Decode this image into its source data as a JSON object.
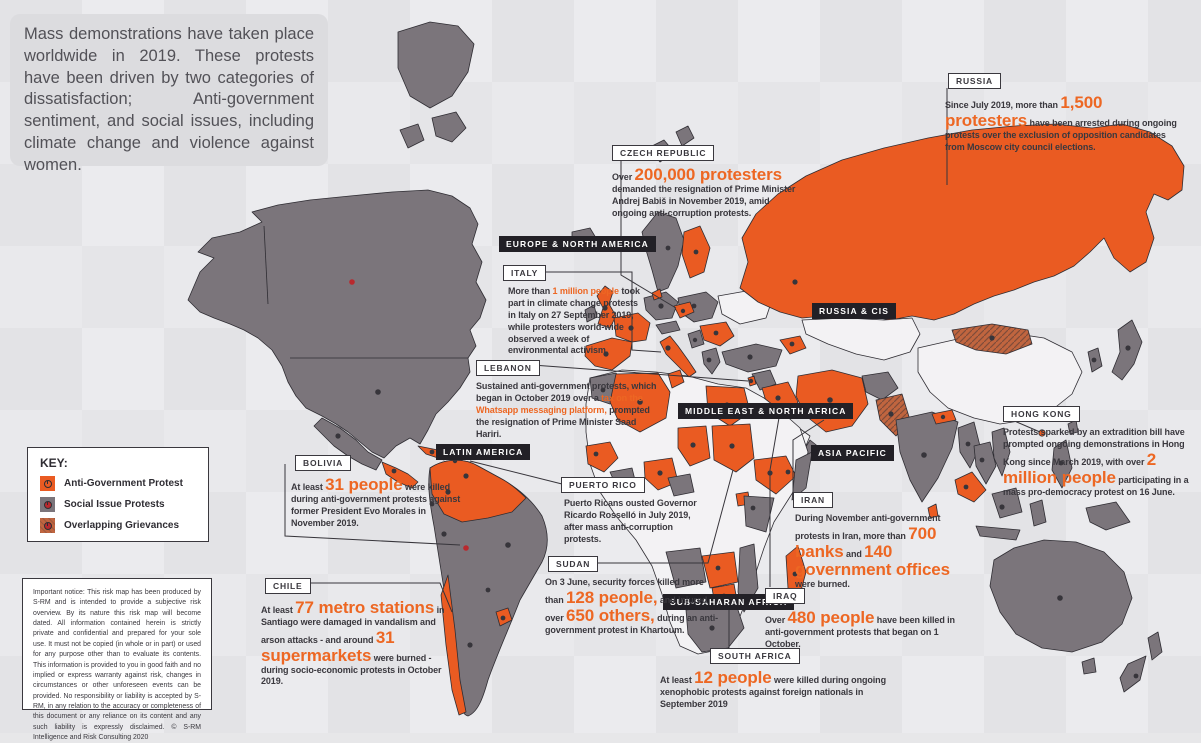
{
  "colors": {
    "page_bg": "#e7e7e9",
    "accent": "#EA5B22",
    "text_orange": "#ED6723",
    "map_gray": "#7b757b",
    "map_light": "#f3f2f4",
    "ink": "#3A383E",
    "chip_bg": "#222026",
    "intro_panel": "#dcdcdf",
    "overlap": "#c0653f",
    "dot_red": "#b9292e"
  },
  "intro": {
    "text": "Mass demonstrations have taken place worldwide in 2019. These protests have been driven by two categories of dissatisfaction; Anti-government sentiment, and social issues, including climate change and violence against women."
  },
  "key": {
    "title": "KEY:",
    "items": [
      {
        "label": "Anti-Government Protest"
      },
      {
        "label": "Social Issue Protests"
      },
      {
        "label": "Overlapping Grievances"
      }
    ]
  },
  "notice": {
    "text": "Important notice: This risk map has been produced by S-RM and is intended to provide a subjective risk overview. By its nature this risk map will become dated. All information contained herein is strictly private and confidential and prepared for your sole use. It must not be copied (in whole or in part) or used for any purpose other than to evaluate its contents. This information is provided to you in good faith and no implied or express warranty against risk, changes in circumstances or other unforeseen events can be provided. No responsibility or liability is accepted by S-RM, in any relation to the accuracy or completeness of this document or any reliance on its content and any such liability is expressly disclaimed. © S-RM Intelligence and Risk Consulting 2020"
  },
  "regions": [
    "EUROPE & NORTH AMERICA",
    "RUSSIA & CIS",
    "MIDDLE EAST & NORTH AFRICA",
    "ASIA PACIFIC",
    "LATIN AMERICA",
    "SUB-SAHARAN AFRICA"
  ],
  "callouts": {
    "czech": {
      "label": "CZECH REPUBLIC",
      "segments": [
        {
          "t": "Over ",
          "s": "n"
        },
        {
          "t": "200,000 protesters",
          "s": "big"
        },
        {
          "t": " demanded the resignation of Prime Minister Andrej Babiš in November 2019, amid ongoing anti-corruption protests.",
          "s": "n"
        }
      ]
    },
    "russia": {
      "label": "RUSSIA",
      "segments": [
        {
          "t": "Since July 2019, more than ",
          "s": "n"
        },
        {
          "t": "1,500 protesters",
          "s": "big"
        },
        {
          "t": " have been arrested during ongoing protests over the exclusion of opposition candidates from Moscow city council elections.",
          "s": "n"
        }
      ]
    },
    "italy": {
      "label": "ITALY",
      "segments": [
        {
          "t": "More than ",
          "s": "n"
        },
        {
          "t": "1 million people",
          "s": "oi"
        },
        {
          "t": " took part in climate change protests in Italy on 27 September 2019, while protesters world-wide observed a week of environmental activism.",
          "s": "n"
        }
      ]
    },
    "lebanon": {
      "label": "LEBANON",
      "segments": [
        {
          "t": "Sustained anti-government protests, which began in October 2019 over a ",
          "s": "n"
        },
        {
          "t": "tax on the Whatsapp messaging platform,",
          "s": "oi"
        },
        {
          "t": " prompted the resignation of Prime Minister Saad Hariri.",
          "s": "n"
        }
      ]
    },
    "bolivia": {
      "label": "BOLIVIA",
      "segments": [
        {
          "t": "At least ",
          "s": "n"
        },
        {
          "t": "31 people",
          "s": "big"
        },
        {
          "t": " were killed during anti-government protests against former President Evo Morales in November 2019.",
          "s": "n"
        }
      ]
    },
    "chile": {
      "label": "CHILE",
      "segments": [
        {
          "t": "At least ",
          "s": "n"
        },
        {
          "t": "77 metro stations",
          "s": "big"
        },
        {
          "t": " in Santiago were damaged in vandalism and arson attacks - and around ",
          "s": "n"
        },
        {
          "t": "31 supermarkets",
          "s": "big"
        },
        {
          "t": " were burned - during socio-economic protests in October 2019.",
          "s": "n"
        }
      ]
    },
    "puerto_rico": {
      "label": "PUERTO RICO",
      "segments": [
        {
          "t": "Puerto Ricans ousted Governor Ricardo Rosselló in July 2019, after mass anti-corruption protests.",
          "s": "n"
        }
      ]
    },
    "sudan": {
      "label": "SUDAN",
      "segments": [
        {
          "t": "On 3 June, security forces killed more than ",
          "s": "n"
        },
        {
          "t": "128 people,",
          "s": "big"
        },
        {
          "t": " and injured over ",
          "s": "n"
        },
        {
          "t": "650 others,",
          "s": "big"
        },
        {
          "t": " during an anti-government protest in Khartoum.",
          "s": "n"
        }
      ]
    },
    "iran": {
      "label": "IRAN",
      "segments": [
        {
          "t": "During November anti-government protests in Iran, more than ",
          "s": "n"
        },
        {
          "t": "700 banks",
          "s": "big"
        },
        {
          "t": " and ",
          "s": "n"
        },
        {
          "t": "140 government offices",
          "s": "big"
        },
        {
          "t": " were burned.",
          "s": "n"
        }
      ]
    },
    "iraq": {
      "label": "IRAQ",
      "segments": [
        {
          "t": "Over ",
          "s": "n"
        },
        {
          "t": "480 people",
          "s": "big"
        },
        {
          "t": " have been killed in anti-government protests that began on 1 October.",
          "s": "n"
        }
      ]
    },
    "south_africa": {
      "label": "SOUTH AFRICA",
      "segments": [
        {
          "t": "At least ",
          "s": "n"
        },
        {
          "t": "12 people",
          "s": "big"
        },
        {
          "t": " were killed during ongoing xenophobic protests against foreign nationals in September 2019",
          "s": "n"
        }
      ]
    },
    "hong_kong": {
      "label": "HONG KONG",
      "segments": [
        {
          "t": "Protests sparked by an extradition bill have prompted ongoing demonstrations in Hong Kong since March 2019, with over ",
          "s": "n"
        },
        {
          "t": "2 million people",
          "s": "big"
        },
        {
          "t": " participating in a mass pro-democracy protest on 16 June.",
          "s": "n"
        }
      ]
    }
  }
}
